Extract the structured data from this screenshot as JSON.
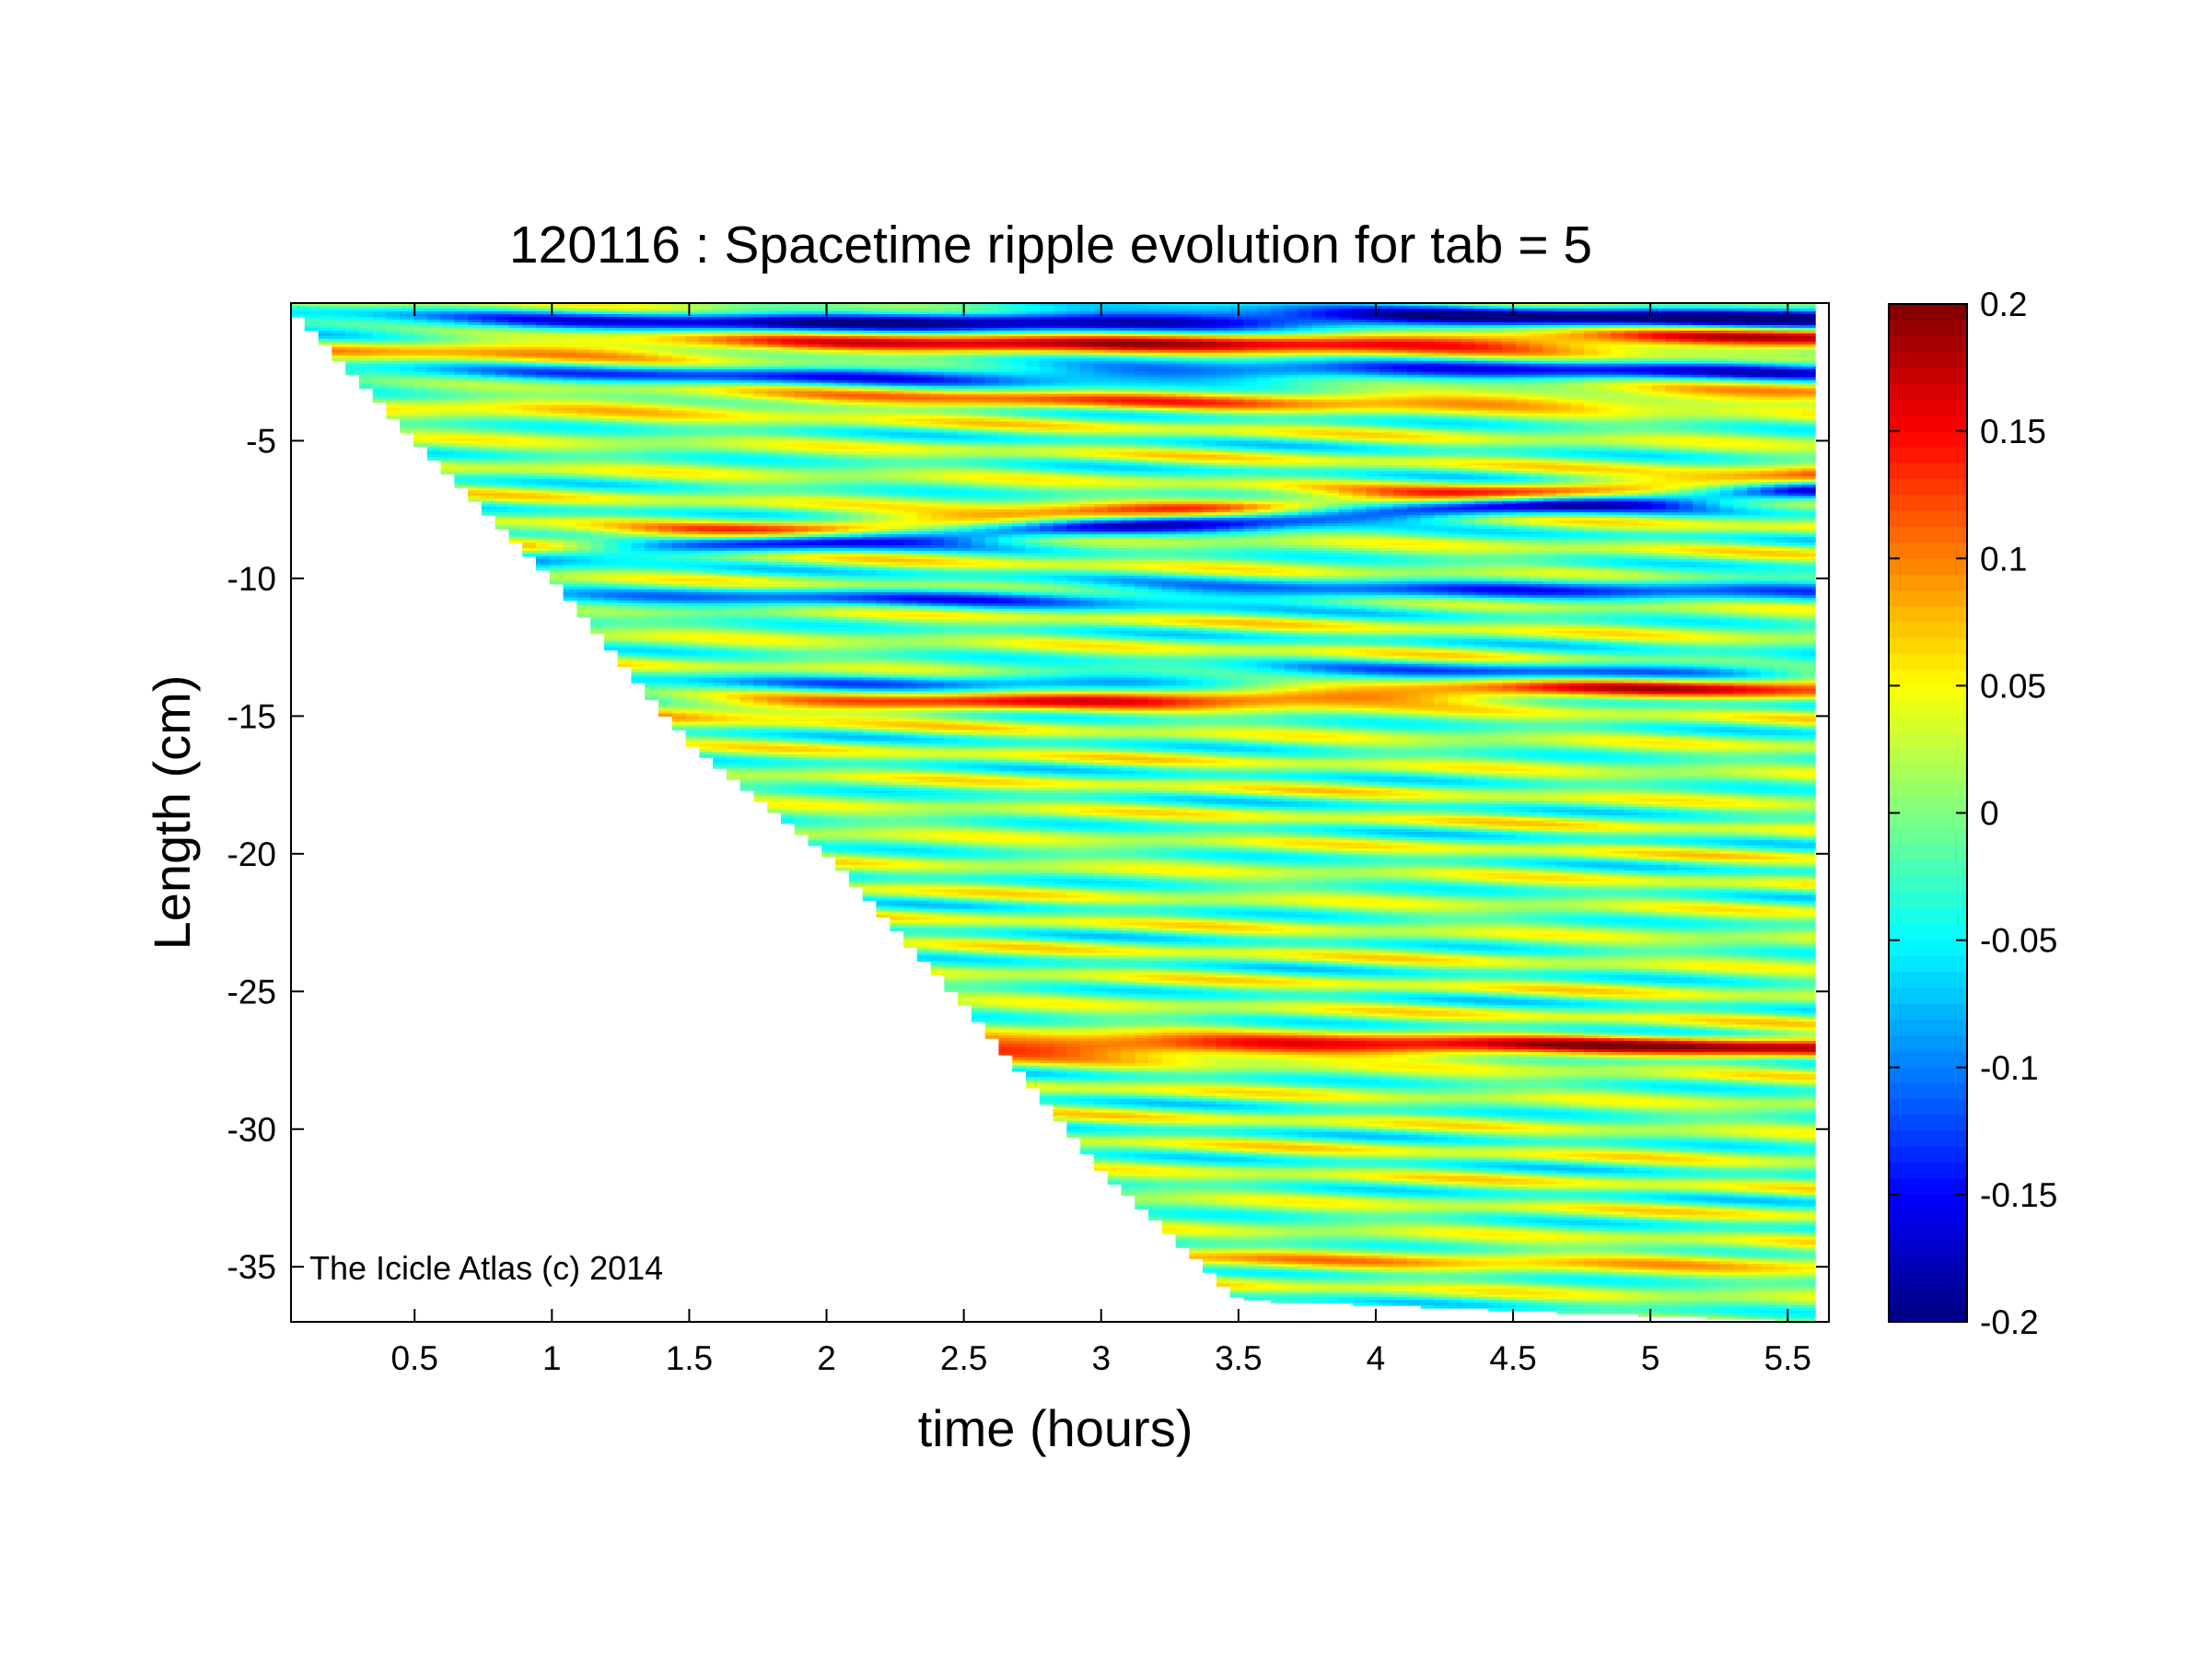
{
  "chart_data": {
    "type": "heatmap",
    "title": "120116 : Spacetime ripple evolution for tab = 5",
    "xlabel": "time (hours)",
    "ylabel": "Length (cm)",
    "annotation": "The Icicle Atlas (c) 2014",
    "xlim": [
      0.05,
      5.65
    ],
    "ylim": [
      -37,
      0
    ],
    "x_ticks": [
      0.5,
      1,
      1.5,
      2,
      2.5,
      3,
      3.5,
      4,
      4.5,
      5,
      5.5
    ],
    "x_tick_labels": [
      "0.5",
      "1",
      "1.5",
      "2",
      "2.5",
      "3",
      "3.5",
      "4",
      "4.5",
      "5",
      "5.5"
    ],
    "y_ticks": [
      -5,
      -10,
      -15,
      -20,
      -25,
      -30,
      -35
    ],
    "y_tick_labels": [
      "-5",
      "-10",
      "-15",
      "-20",
      "-25",
      "-30",
      "-35"
    ],
    "colorbar": {
      "colormap": "jet",
      "range": [
        -0.2,
        0.2
      ],
      "ticks": [
        0.2,
        0.15,
        0.1,
        0.05,
        0,
        -0.05,
        -0.1,
        -0.15,
        -0.2
      ],
      "tick_labels": [
        "0.2",
        "0.15",
        "0.1",
        "0.05",
        "0",
        "-0.05",
        "-0.1",
        "-0.15",
        "-0.2"
      ]
    },
    "data_boundary": {
      "description_free_lower_edge_points": [
        [
          0.05,
          -0.2
        ],
        [
          0.5,
          -5.0
        ],
        [
          1.0,
          -10.0
        ],
        [
          1.5,
          -16.0
        ],
        [
          2.0,
          -20.0
        ],
        [
          2.5,
          -25.5
        ],
        [
          3.0,
          -31.5
        ],
        [
          3.5,
          -36.2
        ],
        [
          5.6,
          -37.0
        ]
      ]
    },
    "ripple_features": [
      {
        "y_start": -0.8,
        "slope_per_hour": 0.05,
        "amplitude": -0.19
      },
      {
        "y_start": -1.6,
        "slope_per_hour": 0.05,
        "amplitude": 0.15
      },
      {
        "y_start": -2.7,
        "slope_per_hour": 0.05,
        "amplitude": -0.12
      },
      {
        "y_start": -3.7,
        "slope_per_hour": 0.05,
        "amplitude": 0.08
      },
      {
        "y_start": -9.6,
        "slope_per_hour": 0.5,
        "amplitude": -0.17
      },
      {
        "y_start": -9.2,
        "slope_per_hour": 0.5,
        "amplitude": 0.13
      },
      {
        "y_start": -10.9,
        "slope_per_hour": 0.1,
        "amplitude": -0.1
      },
      {
        "y_start": -15.0,
        "slope_per_hour": 0.2,
        "amplitude": 0.12
      },
      {
        "y_start": -14.3,
        "slope_per_hour": 0.2,
        "amplitude": -0.08
      },
      {
        "y_start": -27.0,
        "slope_per_hour": 0.0,
        "amplitude": 0.15
      },
      {
        "y_start": -34.8,
        "slope_per_hour": 0.0,
        "amplitude": 0.05
      }
    ]
  }
}
